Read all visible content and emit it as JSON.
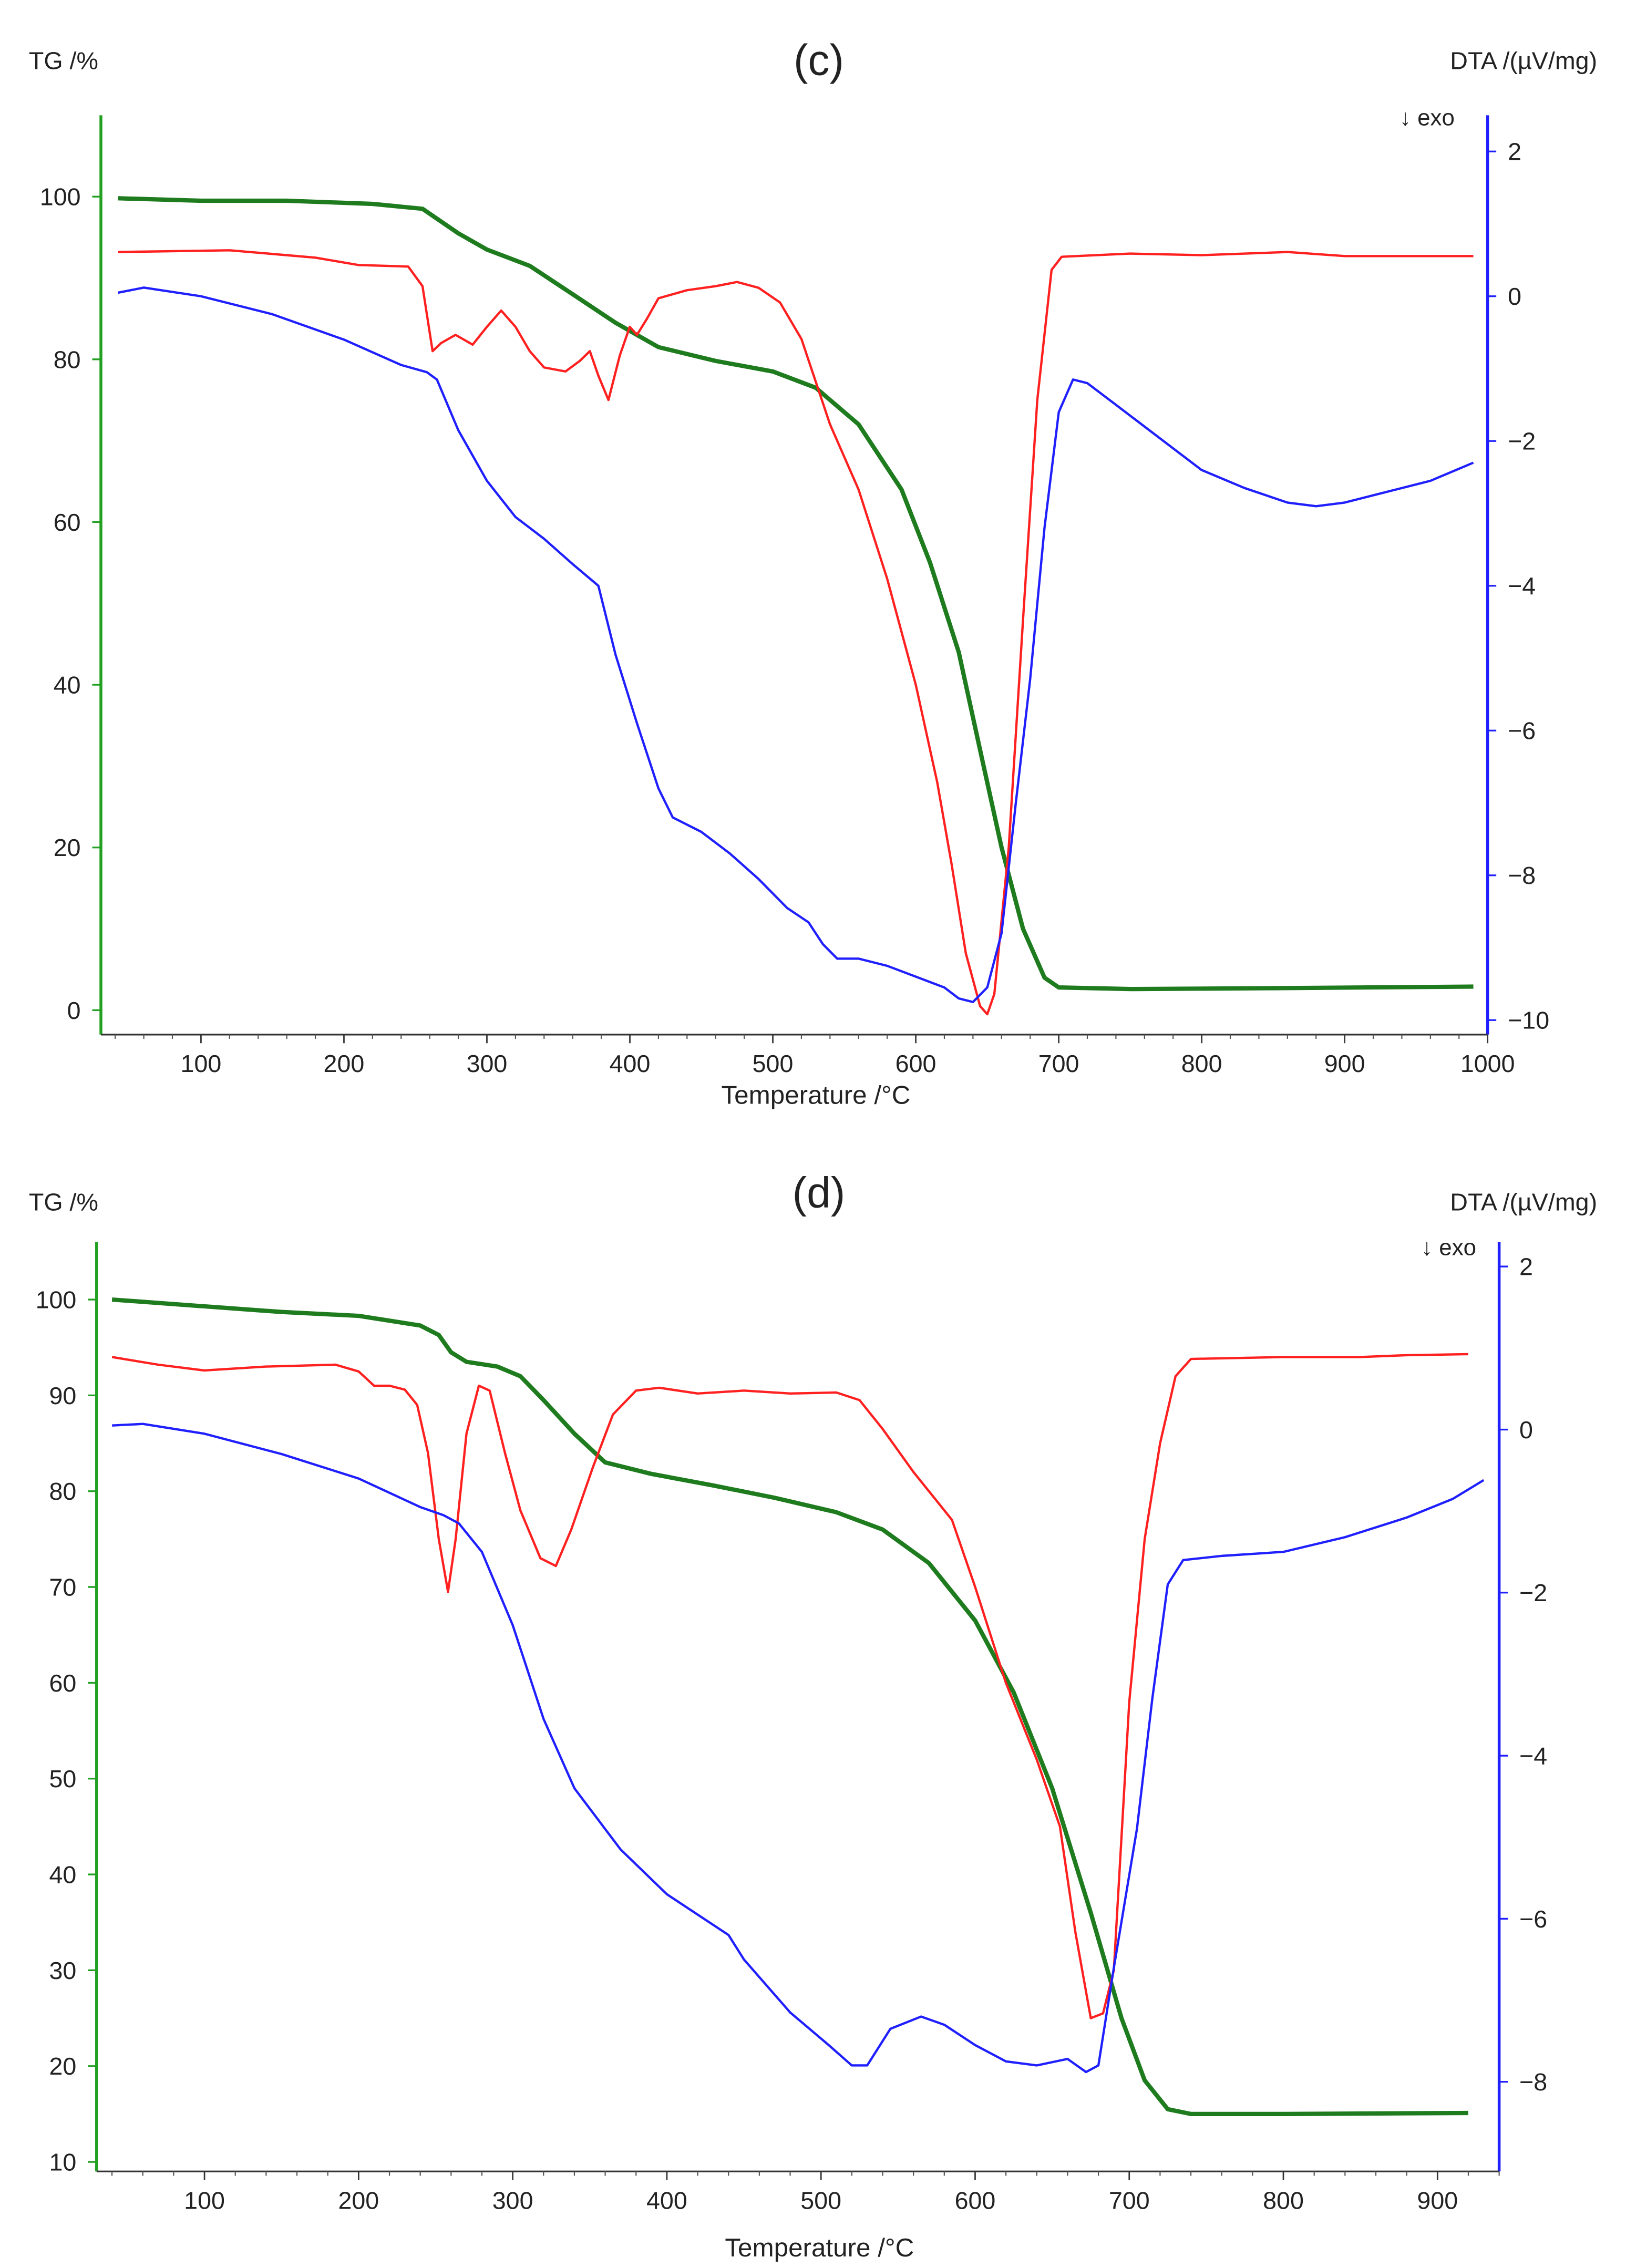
{
  "colors": {
    "tg": "#1e7b1e",
    "dta_blue": "#2020ff",
    "dta_red": "#ff2020",
    "left_axis": "#22a022",
    "right_axis": "#2020ff",
    "text": "#222222"
  },
  "chart_data": [
    {
      "type": "line",
      "panel_label": "(c)",
      "xlabel": "Temperature /°C",
      "ylabel_left": "TG /%",
      "ylabel_right": "DTA /(µV/mg)",
      "exo_marker": "↓ exo",
      "xlim": [
        30,
        1000
      ],
      "ylim_left": [
        -3,
        110
      ],
      "ylim_right": [
        -10.2,
        2.5
      ],
      "x_ticks": [
        100,
        200,
        300,
        400,
        500,
        600,
        700,
        800,
        900,
        1000
      ],
      "y_ticks_left": [
        0,
        20,
        40,
        60,
        80,
        100
      ],
      "y_ticks_right": [
        2,
        0,
        -2,
        -4,
        -6,
        -8,
        -10
      ],
      "y_tick_labels_right": [
        "2",
        "0",
        "−2",
        "−4",
        "−6",
        "−8",
        "−10"
      ],
      "series": [
        {
          "name": "TG",
          "axis": "left",
          "color_key": "tg",
          "points": [
            [
              42,
              99.8
            ],
            [
              100,
              99.5
            ],
            [
              160,
              99.5
            ],
            [
              220,
              99.1
            ],
            [
              255,
              98.5
            ],
            [
              280,
              95.5
            ],
            [
              300,
              93.5
            ],
            [
              330,
              91.5
            ],
            [
              360,
              88
            ],
            [
              390,
              84.5
            ],
            [
              420,
              81.5
            ],
            [
              460,
              79.8
            ],
            [
              500,
              78.5
            ],
            [
              530,
              76.5
            ],
            [
              560,
              72
            ],
            [
              590,
              64
            ],
            [
              610,
              55
            ],
            [
              630,
              44
            ],
            [
              645,
              32
            ],
            [
              660,
              20
            ],
            [
              675,
              10
            ],
            [
              690,
              4
            ],
            [
              700,
              2.8
            ],
            [
              750,
              2.6
            ],
            [
              850,
              2.7
            ],
            [
              990,
              2.9
            ]
          ]
        },
        {
          "name": "DTA (red)",
          "axis": "left",
          "color_key": "dta_red",
          "points": [
            [
              42,
              93.2
            ],
            [
              120,
              93.4
            ],
            [
              180,
              92.5
            ],
            [
              210,
              91.6
            ],
            [
              245,
              91.4
            ],
            [
              255,
              89
            ],
            [
              262,
              81
            ],
            [
              268,
              82
            ],
            [
              278,
              83
            ],
            [
              290,
              81.8
            ],
            [
              300,
              84
            ],
            [
              310,
              86
            ],
            [
              320,
              84
            ],
            [
              330,
              81
            ],
            [
              340,
              79
            ],
            [
              355,
              78.5
            ],
            [
              365,
              79.8
            ],
            [
              372,
              81
            ],
            [
              378,
              78
            ],
            [
              385,
              75
            ],
            [
              393,
              80.5
            ],
            [
              400,
              84
            ],
            [
              405,
              83
            ],
            [
              412,
              85
            ],
            [
              420,
              87.5
            ],
            [
              440,
              88.5
            ],
            [
              460,
              89
            ],
            [
              475,
              89.5
            ],
            [
              490,
              88.8
            ],
            [
              505,
              87
            ],
            [
              520,
              82.5
            ],
            [
              540,
              72
            ],
            [
              560,
              64
            ],
            [
              580,
              53
            ],
            [
              600,
              40
            ],
            [
              615,
              28
            ],
            [
              625,
              18
            ],
            [
              635,
              7
            ],
            [
              645,
              0.5
            ],
            [
              650,
              -0.5
            ],
            [
              655,
              2
            ],
            [
              665,
              20
            ],
            [
              675,
              48
            ],
            [
              685,
              75
            ],
            [
              695,
              91
            ],
            [
              702,
              92.6
            ],
            [
              750,
              93
            ],
            [
              800,
              92.8
            ],
            [
              860,
              93.2
            ],
            [
              900,
              92.7
            ],
            [
              990,
              92.7
            ]
          ]
        },
        {
          "name": "DTA (blue)",
          "axis": "right",
          "color_key": "dta_blue",
          "points": [
            [
              42,
              0.05
            ],
            [
              60,
              0.12
            ],
            [
              100,
              0.0
            ],
            [
              150,
              -0.25
            ],
            [
              200,
              -0.6
            ],
            [
              240,
              -0.95
            ],
            [
              258,
              -1.05
            ],
            [
              265,
              -1.15
            ],
            [
              280,
              -1.85
            ],
            [
              300,
              -2.55
            ],
            [
              320,
              -3.05
            ],
            [
              340,
              -3.35
            ],
            [
              360,
              -3.7
            ],
            [
              378,
              -4.0
            ],
            [
              390,
              -4.95
            ],
            [
              405,
              -5.9
            ],
            [
              420,
              -6.8
            ],
            [
              430,
              -7.2
            ],
            [
              450,
              -7.4
            ],
            [
              470,
              -7.7
            ],
            [
              490,
              -8.05
            ],
            [
              510,
              -8.45
            ],
            [
              525,
              -8.65
            ],
            [
              535,
              -8.95
            ],
            [
              545,
              -9.15
            ],
            [
              560,
              -9.15
            ],
            [
              580,
              -9.25
            ],
            [
              600,
              -9.4
            ],
            [
              620,
              -9.55
            ],
            [
              630,
              -9.7
            ],
            [
              640,
              -9.75
            ],
            [
              650,
              -9.55
            ],
            [
              660,
              -8.8
            ],
            [
              670,
              -7.0
            ],
            [
              680,
              -5.3
            ],
            [
              690,
              -3.2
            ],
            [
              700,
              -1.6
            ],
            [
              710,
              -1.15
            ],
            [
              720,
              -1.2
            ],
            [
              740,
              -1.5
            ],
            [
              770,
              -1.95
            ],
            [
              800,
              -2.4
            ],
            [
              830,
              -2.65
            ],
            [
              860,
              -2.85
            ],
            [
              880,
              -2.9
            ],
            [
              900,
              -2.85
            ],
            [
              930,
              -2.7
            ],
            [
              960,
              -2.55
            ],
            [
              990,
              -2.3
            ]
          ]
        }
      ]
    },
    {
      "type": "line",
      "panel_label": "(d)",
      "xlabel": "Temperature /°C",
      "ylabel_left": "TG /%",
      "ylabel_right": "DTA /(µV/mg)",
      "exo_marker": "↓ exo",
      "xlim": [
        30,
        940
      ],
      "ylim_left": [
        9,
        106
      ],
      "ylim_right": [
        -9.1,
        2.3
      ],
      "x_ticks": [
        100,
        200,
        300,
        400,
        500,
        600,
        700,
        800,
        900
      ],
      "y_ticks_left": [
        10,
        20,
        30,
        40,
        50,
        60,
        70,
        80,
        90,
        100
      ],
      "y_ticks_right": [
        2,
        0,
        -2,
        -4,
        -6,
        -8
      ],
      "y_tick_labels_right": [
        "2",
        "0",
        "−2",
        "−4",
        "−6",
        "−8"
      ],
      "series": [
        {
          "name": "TG",
          "axis": "left",
          "color_key": "tg",
          "points": [
            [
              40,
              100
            ],
            [
              100,
              99.3
            ],
            [
              150,
              98.7
            ],
            [
              200,
              98.3
            ],
            [
              240,
              97.3
            ],
            [
              252,
              96.3
            ],
            [
              260,
              94.5
            ],
            [
              270,
              93.5
            ],
            [
              290,
              93
            ],
            [
              305,
              92
            ],
            [
              320,
              89.5
            ],
            [
              340,
              86
            ],
            [
              360,
              83
            ],
            [
              390,
              81.8
            ],
            [
              430,
              80.6
            ],
            [
              470,
              79.3
            ],
            [
              510,
              77.8
            ],
            [
              540,
              76
            ],
            [
              570,
              72.5
            ],
            [
              600,
              66.5
            ],
            [
              625,
              59
            ],
            [
              650,
              49
            ],
            [
              675,
              36
            ],
            [
              695,
              25
            ],
            [
              710,
              18.5
            ],
            [
              725,
              15.5
            ],
            [
              740,
              15
            ],
            [
              800,
              15
            ],
            [
              920,
              15.1
            ]
          ]
        },
        {
          "name": "DTA (red)",
          "axis": "left",
          "color_key": "dta_red",
          "points": [
            [
              40,
              94
            ],
            [
              70,
              93.2
            ],
            [
              100,
              92.6
            ],
            [
              140,
              93
            ],
            [
              185,
              93.2
            ],
            [
              200,
              92.5
            ],
            [
              210,
              91
            ],
            [
              220,
              91
            ],
            [
              230,
              90.6
            ],
            [
              238,
              89
            ],
            [
              245,
              84
            ],
            [
              252,
              75
            ],
            [
              258,
              69.5
            ],
            [
              263,
              75
            ],
            [
              270,
              86
            ],
            [
              278,
              91
            ],
            [
              285,
              90.5
            ],
            [
              295,
              84
            ],
            [
              305,
              78
            ],
            [
              318,
              73
            ],
            [
              328,
              72.2
            ],
            [
              338,
              76
            ],
            [
              352,
              82.5
            ],
            [
              365,
              88
            ],
            [
              380,
              90.5
            ],
            [
              395,
              90.8
            ],
            [
              420,
              90.2
            ],
            [
              450,
              90.5
            ],
            [
              480,
              90.2
            ],
            [
              510,
              90.3
            ],
            [
              525,
              89.5
            ],
            [
              540,
              86.5
            ],
            [
              560,
              82
            ],
            [
              585,
              77
            ],
            [
              600,
              70
            ],
            [
              620,
              60
            ],
            [
              640,
              52
            ],
            [
              655,
              45
            ],
            [
              665,
              34
            ],
            [
              675,
              25
            ],
            [
              683,
              25.5
            ],
            [
              690,
              30
            ],
            [
              700,
              58
            ],
            [
              710,
              75
            ],
            [
              720,
              85
            ],
            [
              730,
              92
            ],
            [
              740,
              93.8
            ],
            [
              800,
              94
            ],
            [
              850,
              94
            ],
            [
              880,
              94.2
            ],
            [
              920,
              94.3
            ]
          ]
        },
        {
          "name": "DTA (blue)",
          "axis": "right",
          "color_key": "dta_blue",
          "points": [
            [
              40,
              0.05
            ],
            [
              60,
              0.07
            ],
            [
              100,
              -0.05
            ],
            [
              150,
              -0.3
            ],
            [
              200,
              -0.6
            ],
            [
              240,
              -0.95
            ],
            [
              255,
              -1.05
            ],
            [
              265,
              -1.15
            ],
            [
              280,
              -1.5
            ],
            [
              300,
              -2.4
            ],
            [
              320,
              -3.55
            ],
            [
              340,
              -4.4
            ],
            [
              370,
              -5.15
            ],
            [
              400,
              -5.7
            ],
            [
              440,
              -6.2
            ],
            [
              450,
              -6.5
            ],
            [
              480,
              -7.15
            ],
            [
              505,
              -7.55
            ],
            [
              520,
              -7.8
            ],
            [
              530,
              -7.8
            ],
            [
              545,
              -7.35
            ],
            [
              565,
              -7.2
            ],
            [
              580,
              -7.3
            ],
            [
              600,
              -7.55
            ],
            [
              620,
              -7.75
            ],
            [
              640,
              -7.8
            ],
            [
              660,
              -7.72
            ],
            [
              672,
              -7.88
            ],
            [
              680,
              -7.8
            ],
            [
              690,
              -6.6
            ],
            [
              705,
              -4.9
            ],
            [
              715,
              -3.3
            ],
            [
              725,
              -1.9
            ],
            [
              735,
              -1.6
            ],
            [
              760,
              -1.55
            ],
            [
              800,
              -1.5
            ],
            [
              840,
              -1.32
            ],
            [
              880,
              -1.08
            ],
            [
              910,
              -0.85
            ],
            [
              930,
              -0.62
            ]
          ]
        }
      ]
    }
  ]
}
